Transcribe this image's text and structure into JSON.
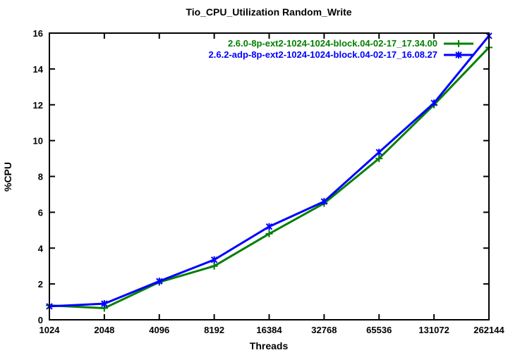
{
  "window": {
    "background": "#ffffff"
  },
  "chart": {
    "title": "Tio_CPU_Utilization Random_Write",
    "xlabel": "Threads",
    "ylabel": "%CPU"
  },
  "chart_data": {
    "type": "line",
    "title": "Tio_CPU_Utilization Random_Write",
    "xlabel": "Threads",
    "ylabel": "%CPU",
    "x_scale": "log2-categorical",
    "categories": [
      "1024",
      "2048",
      "4096",
      "8192",
      "16384",
      "32768",
      "65536",
      "131072",
      "262144"
    ],
    "y_ticks": [
      0,
      2,
      4,
      6,
      8,
      10,
      12,
      14,
      16
    ],
    "ylim": [
      0,
      16
    ],
    "grid": false,
    "ticks_mirrored": true,
    "legend_position": "top-right-inside",
    "axis_color": "#000000",
    "series": [
      {
        "name": "2.6.0-8p-ext2-1024-1024-block.04-02-17_17.34.00",
        "color": "#008000",
        "marker": "plus",
        "values": [
          0.8,
          0.65,
          2.1,
          3.0,
          4.8,
          6.5,
          9.0,
          12.0,
          15.2
        ]
      },
      {
        "name": "2.6.2-adp-8p-ext2-1024-1024-block.04-02-17_16.08.27",
        "color": "#0000ff",
        "marker": "star",
        "values": [
          0.75,
          0.9,
          2.15,
          3.35,
          5.2,
          6.6,
          9.35,
          12.1,
          15.85
        ]
      }
    ]
  }
}
